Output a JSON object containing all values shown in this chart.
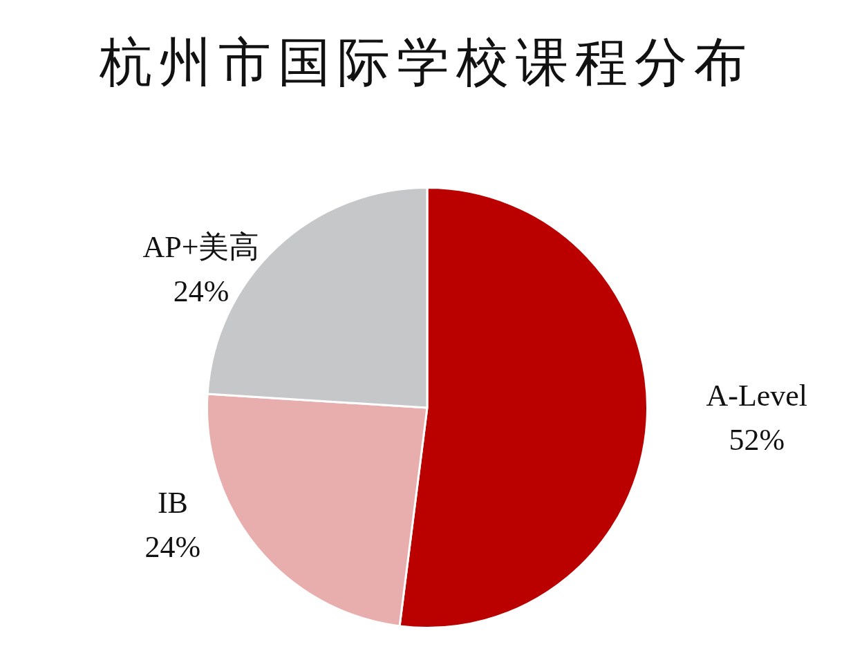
{
  "chart_data": {
    "type": "pie",
    "title": "杭州市国际学校课程分布",
    "categories": [
      "A-Level",
      "IB",
      "AP+美高"
    ],
    "values": [
      52,
      24,
      24
    ],
    "colors": [
      "#bb0000",
      "#e8aeae",
      "#c6c7c9"
    ],
    "value_labels": [
      "52%",
      "24%",
      "24%"
    ]
  }
}
